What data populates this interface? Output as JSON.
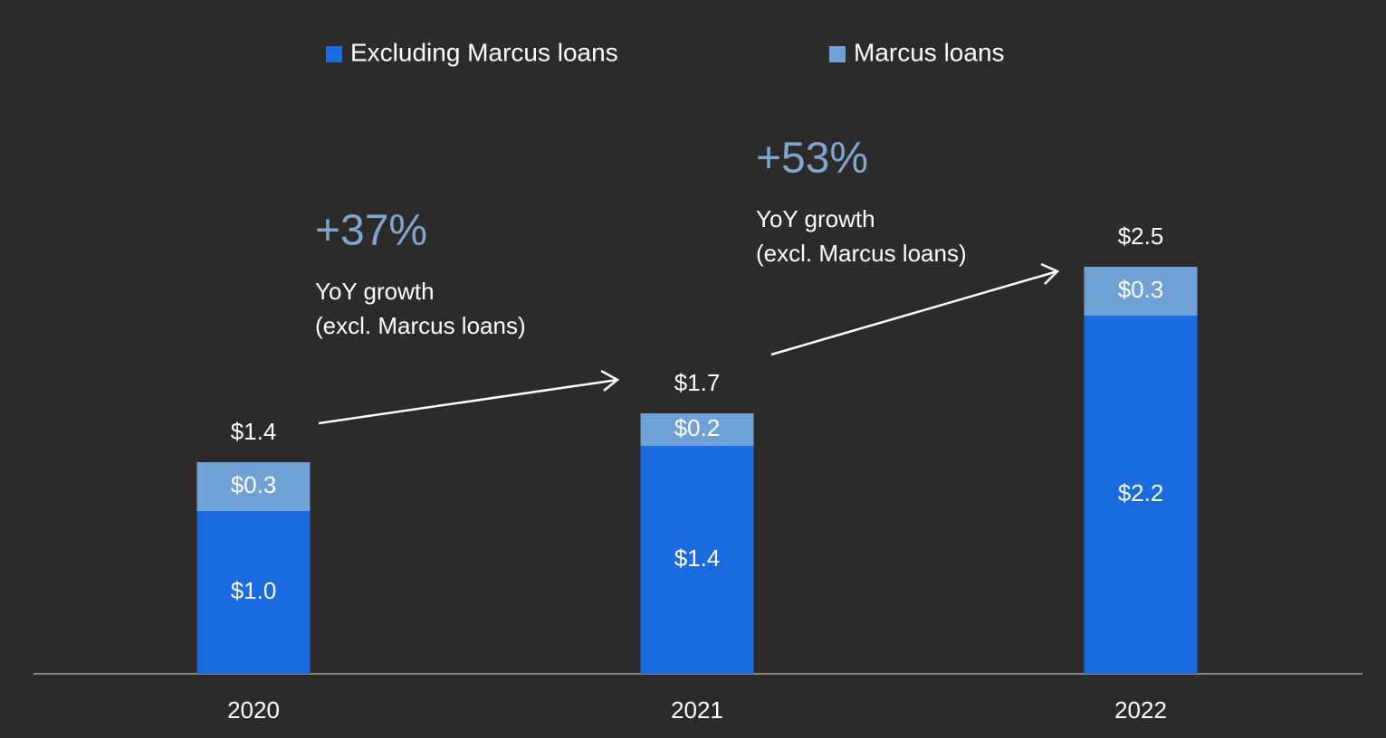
{
  "chart_data": {
    "type": "stacked-bar",
    "categories": [
      "2020",
      "2021",
      "2022"
    ],
    "series": [
      {
        "name": "Excluding Marcus loans",
        "color": "#1a6be0",
        "values": [
          1.0,
          1.4,
          2.2
        ],
        "value_labels": [
          "$1.0",
          "$1.4",
          "$2.2"
        ]
      },
      {
        "name": "Marcus loans",
        "color": "#6fa0d6",
        "values": [
          0.3,
          0.2,
          0.3
        ],
        "value_labels": [
          "$0.3",
          "$0.2",
          "$0.3"
        ]
      }
    ],
    "totals": [
      1.4,
      1.7,
      2.5
    ],
    "total_labels": [
      "$1.4",
      "$1.7",
      "$2.5"
    ],
    "annotations": [
      {
        "headline": "+37%",
        "lines": [
          "YoY growth",
          "(excl. Marcus loans)"
        ]
      },
      {
        "headline": "+53%",
        "lines": [
          "YoY growth",
          "(excl. Marcus loans)"
        ]
      }
    ]
  }
}
